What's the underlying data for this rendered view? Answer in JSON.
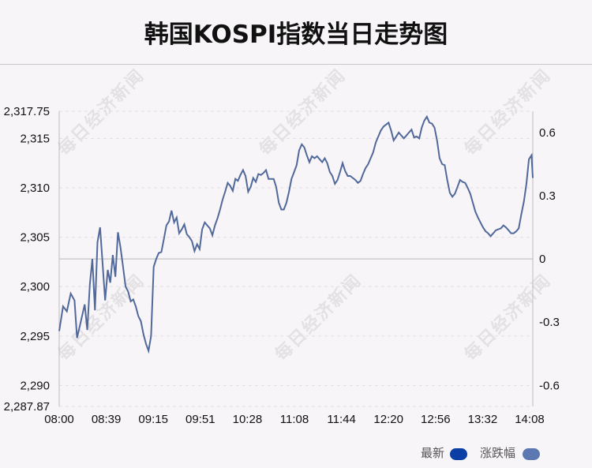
{
  "title": "韩国KOSPI指数当日走势图",
  "watermark_text": "每日经济新闻",
  "legend": {
    "latest_label": "最新",
    "latest_color": "#0b3fa6",
    "change_label": "涨跌幅",
    "change_color": "#5b78b0"
  },
  "chart_data": {
    "type": "line",
    "title": "韩国KOSPI指数当日走势图",
    "x_tick_labels": [
      "08:00",
      "08:39",
      "09:15",
      "09:51",
      "10:28",
      "11:08",
      "11:44",
      "12:20",
      "12:56",
      "13:32",
      "14:08"
    ],
    "y_left_ticks": [
      "2,317.75",
      "2,315",
      "2,310",
      "2,305",
      "2,300",
      "2,295",
      "2,290",
      "2,287.87"
    ],
    "y_left_ticks_values": [
      2317.75,
      2315,
      2310,
      2305,
      2300,
      2295,
      2290,
      2287.87
    ],
    "y_right_ticks": [
      "0.6",
      "0.3",
      "0",
      "-0.3",
      "-0.6"
    ],
    "y_right_ticks_values": [
      0.6,
      0.3,
      0,
      -0.3,
      -0.6
    ],
    "ylim_left": [
      2287.87,
      2317.75
    ],
    "baseline": 2302.8,
    "x_range_minutes": [
      0,
      371
    ],
    "line_color": "#50699a",
    "series": [
      {
        "values": [
          [
            0,
            2295.5
          ],
          [
            3,
            2298.0
          ],
          [
            6,
            2297.5
          ],
          [
            9,
            2299.3
          ],
          [
            12,
            2298.6
          ],
          [
            14,
            2294.8
          ],
          [
            17,
            2296.5
          ],
          [
            20,
            2298.2
          ],
          [
            22,
            2295.6
          ],
          [
            24,
            2300.2
          ],
          [
            26,
            2302.8
          ],
          [
            28,
            2297.6
          ],
          [
            30,
            2304.5
          ],
          [
            32,
            2306.0
          ],
          [
            34,
            2302.3
          ],
          [
            36,
            2298.6
          ],
          [
            38,
            2301.7
          ],
          [
            40,
            2300.4
          ],
          [
            42,
            2303.2
          ],
          [
            44,
            2301.0
          ],
          [
            46,
            2305.5
          ],
          [
            48,
            2304.0
          ],
          [
            50,
            2302.0
          ],
          [
            52,
            2300.0
          ],
          [
            54,
            2299.5
          ],
          [
            56,
            2298.5
          ],
          [
            58,
            2298.7
          ],
          [
            60,
            2298.0
          ],
          [
            62,
            2297.0
          ],
          [
            64,
            2296.5
          ],
          [
            66,
            2295.2
          ],
          [
            68,
            2294.2
          ],
          [
            70,
            2293.5
          ],
          [
            72,
            2295.0
          ],
          [
            74,
            2302.0
          ],
          [
            76,
            2302.8
          ],
          [
            78,
            2303.4
          ],
          [
            80,
            2303.5
          ],
          [
            82,
            2304.8
          ],
          [
            84,
            2306.2
          ],
          [
            86,
            2306.6
          ],
          [
            88,
            2307.7
          ],
          [
            90,
            2306.5
          ],
          [
            92,
            2307.0
          ],
          [
            94,
            2305.4
          ],
          [
            96,
            2305.8
          ],
          [
            98,
            2306.3
          ],
          [
            100,
            2305.3
          ],
          [
            102,
            2305.0
          ],
          [
            104,
            2304.6
          ],
          [
            106,
            2303.6
          ],
          [
            108,
            2304.3
          ],
          [
            110,
            2303.8
          ],
          [
            112,
            2305.8
          ],
          [
            114,
            2306.5
          ],
          [
            116,
            2306.2
          ],
          [
            118,
            2305.9
          ],
          [
            120,
            2305.2
          ],
          [
            122,
            2306.2
          ],
          [
            124,
            2306.9
          ],
          [
            126,
            2307.8
          ],
          [
            128,
            2308.8
          ],
          [
            130,
            2309.6
          ],
          [
            132,
            2310.5
          ],
          [
            134,
            2310.2
          ],
          [
            136,
            2309.7
          ],
          [
            138,
            2310.9
          ],
          [
            140,
            2310.7
          ],
          [
            142,
            2311.3
          ],
          [
            144,
            2311.8
          ],
          [
            146,
            2311.2
          ],
          [
            148,
            2309.6
          ],
          [
            150,
            2310.1
          ],
          [
            152,
            2311.0
          ],
          [
            154,
            2310.6
          ],
          [
            156,
            2311.4
          ],
          [
            158,
            2311.3
          ],
          [
            160,
            2311.5
          ],
          [
            162,
            2311.8
          ],
          [
            164,
            2310.9
          ],
          [
            166,
            2310.9
          ],
          [
            168,
            2310.9
          ],
          [
            170,
            2310.1
          ],
          [
            172,
            2308.5
          ],
          [
            174,
            2307.8
          ],
          [
            176,
            2307.8
          ],
          [
            178,
            2308.5
          ],
          [
            180,
            2309.6
          ],
          [
            182,
            2310.9
          ],
          [
            184,
            2311.6
          ],
          [
            186,
            2312.3
          ],
          [
            188,
            2313.8
          ],
          [
            190,
            2314.4
          ],
          [
            192,
            2314.1
          ],
          [
            194,
            2313.3
          ],
          [
            196,
            2312.6
          ],
          [
            198,
            2313.2
          ],
          [
            200,
            2313.0
          ],
          [
            202,
            2313.2
          ],
          [
            204,
            2312.9
          ],
          [
            206,
            2312.6
          ],
          [
            208,
            2313.0
          ],
          [
            210,
            2312.5
          ],
          [
            212,
            2311.6
          ],
          [
            214,
            2311.2
          ],
          [
            216,
            2310.4
          ],
          [
            218,
            2310.8
          ],
          [
            220,
            2311.6
          ],
          [
            222,
            2312.5
          ],
          [
            224,
            2311.7
          ],
          [
            226,
            2311.2
          ],
          [
            228,
            2311.2
          ],
          [
            230,
            2311.0
          ],
          [
            232,
            2310.8
          ],
          [
            234,
            2310.5
          ],
          [
            236,
            2310.7
          ],
          [
            238,
            2311.4
          ],
          [
            240,
            2312.0
          ],
          [
            242,
            2312.4
          ],
          [
            244,
            2313.0
          ],
          [
            246,
            2313.6
          ],
          [
            248,
            2314.6
          ],
          [
            250,
            2315.2
          ],
          [
            252,
            2315.8
          ],
          [
            254,
            2316.2
          ],
          [
            256,
            2316.4
          ],
          [
            258,
            2316.6
          ],
          [
            260,
            2315.8
          ],
          [
            262,
            2314.8
          ],
          [
            264,
            2315.2
          ],
          [
            266,
            2315.6
          ],
          [
            268,
            2315.3
          ],
          [
            270,
            2315.0
          ],
          [
            272,
            2315.3
          ],
          [
            274,
            2315.6
          ],
          [
            276,
            2315.9
          ],
          [
            278,
            2315.1
          ],
          [
            280,
            2315.2
          ],
          [
            282,
            2315.0
          ],
          [
            284,
            2316.1
          ],
          [
            286,
            2316.8
          ],
          [
            288,
            2317.2
          ],
          [
            290,
            2316.6
          ],
          [
            292,
            2316.5
          ],
          [
            294,
            2316.1
          ],
          [
            296,
            2314.8
          ],
          [
            298,
            2313.0
          ],
          [
            300,
            2312.4
          ],
          [
            302,
            2312.3
          ],
          [
            304,
            2310.8
          ],
          [
            306,
            2309.5
          ],
          [
            308,
            2309.1
          ],
          [
            310,
            2309.4
          ],
          [
            312,
            2310.1
          ],
          [
            314,
            2310.8
          ],
          [
            316,
            2310.6
          ],
          [
            318,
            2310.5
          ],
          [
            320,
            2310.0
          ],
          [
            322,
            2309.4
          ],
          [
            324,
            2308.5
          ],
          [
            326,
            2307.6
          ],
          [
            328,
            2307.0
          ],
          [
            330,
            2306.5
          ],
          [
            332,
            2306.0
          ],
          [
            334,
            2305.6
          ],
          [
            336,
            2305.4
          ],
          [
            338,
            2305.1
          ],
          [
            340,
            2305.4
          ],
          [
            342,
            2305.7
          ],
          [
            344,
            2305.8
          ],
          [
            346,
            2305.9
          ],
          [
            348,
            2306.2
          ],
          [
            350,
            2306.0
          ],
          [
            352,
            2305.7
          ],
          [
            354,
            2305.4
          ],
          [
            356,
            2305.4
          ],
          [
            358,
            2305.6
          ],
          [
            360,
            2305.9
          ],
          [
            362,
            2307.3
          ],
          [
            364,
            2308.6
          ],
          [
            366,
            2310.4
          ],
          [
            368,
            2312.9
          ],
          [
            370,
            2313.3
          ],
          [
            371,
            2311.0
          ]
        ]
      }
    ]
  }
}
